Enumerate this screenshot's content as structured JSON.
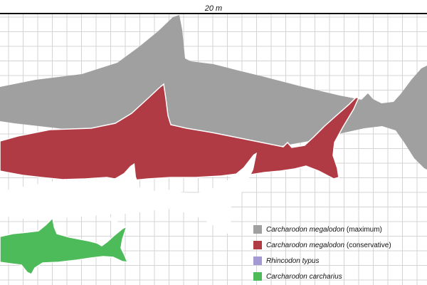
{
  "scale": {
    "label": "20 m"
  },
  "legend": {
    "items": [
      {
        "name": "Carcharodon megalodon",
        "note": "(maximum)",
        "color": "#a0a0a0"
      },
      {
        "name": "Carcharodon megalodon",
        "note": "(conservative)",
        "color": "#b13b44"
      },
      {
        "name": "Rhincodon typus",
        "note": "",
        "color": "#a599d4"
      },
      {
        "name": "Carcharodon carcharius",
        "note": "",
        "color": "#4dbb59"
      }
    ]
  },
  "colors": {
    "megalodon_max": "#a0a0a0",
    "megalodon_conservative": "#b13b44",
    "whale_shark": "#a599d4",
    "great_white": "#4dbb59",
    "grid": "#d4d4d4",
    "scale_bar": "#111111"
  }
}
